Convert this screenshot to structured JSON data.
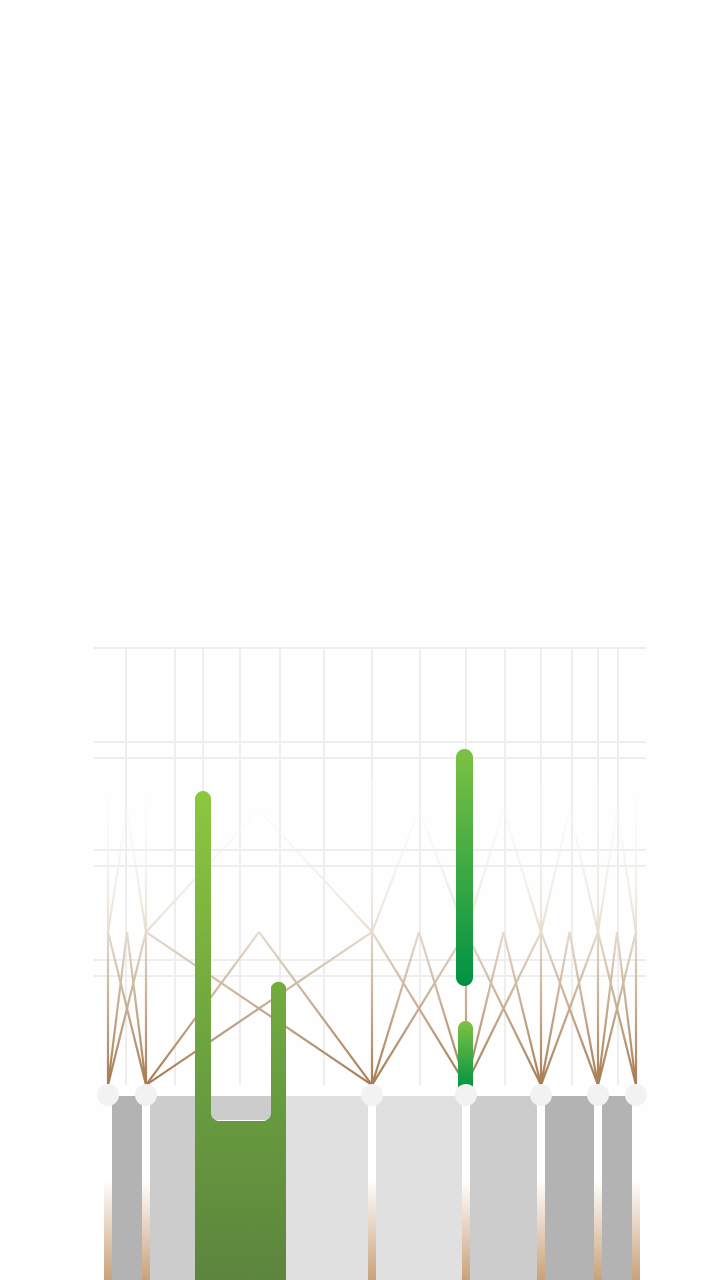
{
  "colors": {
    "background": "#fefefe",
    "grid": "#eeeeee",
    "truss_top": "#f3f0ec",
    "truss_bottom": "#a67c52",
    "node": "#f2f2f2",
    "column_dark": "#b3b3b3",
    "column_mid": "#cccccc",
    "column_light": "#e0e0e0",
    "green_light": "#8dc63f",
    "green_dark": "#009245",
    "green_olive": "#5d8a3c"
  },
  "icons": {
    "artwork": "abstract-truss-and-green-bars-illustration"
  }
}
